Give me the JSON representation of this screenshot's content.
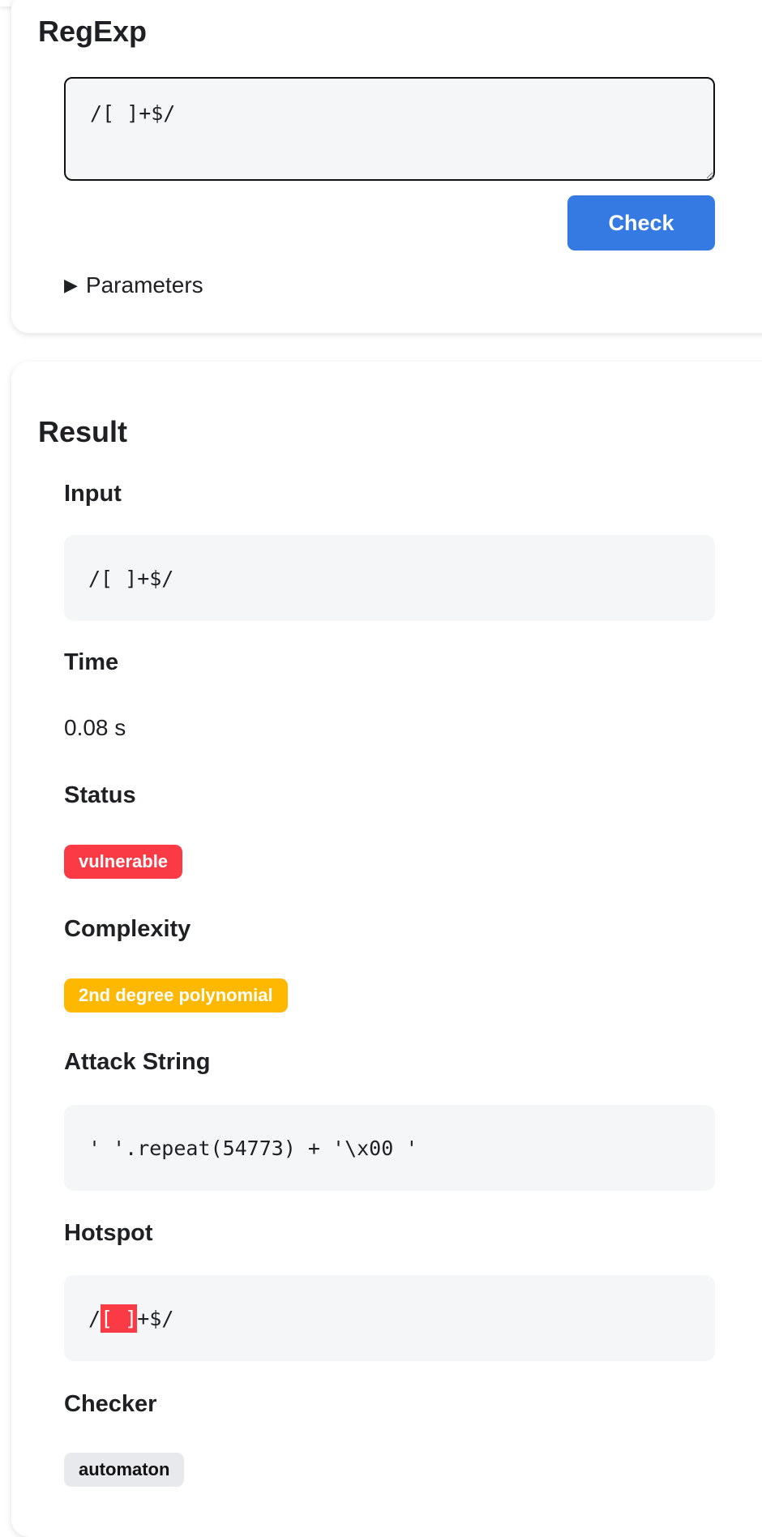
{
  "regexp_card": {
    "title": "RegExp",
    "input_value": "/[ ]+$/",
    "check_label": "Check",
    "parameters_label": "Parameters"
  },
  "result_card": {
    "title": "Result",
    "input_label": "Input",
    "input_value": "/[ ]+$/",
    "time_label": "Time",
    "time_value": "0.08 s",
    "status_label": "Status",
    "status_value": "vulnerable",
    "status_color": "#fa3a44",
    "complexity_label": "Complexity",
    "complexity_value": "2nd degree polynomial",
    "complexity_color": "#ffb800",
    "attack_label": "Attack String",
    "attack_value": "' '.repeat(54773) + '\\x00 '",
    "hotspot_label": "Hotspot",
    "hotspot_pre": "/",
    "hotspot_highlight": "[ ]",
    "hotspot_post": "+$/",
    "hotspot_color": "#fa3a44",
    "checker_label": "Checker",
    "checker_value": "automaton"
  }
}
